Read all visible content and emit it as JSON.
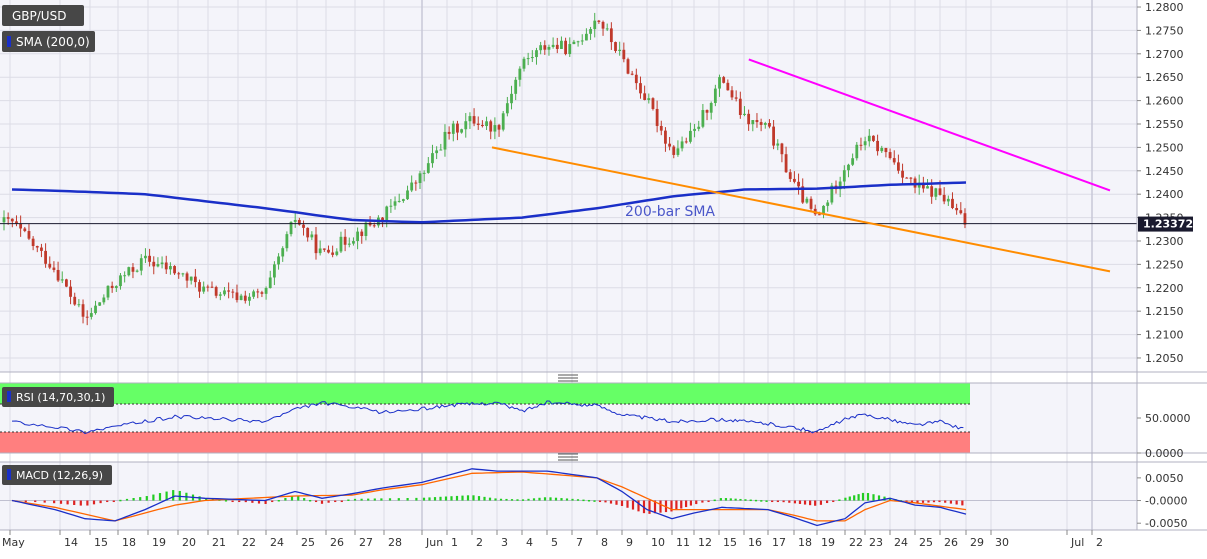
{
  "header": {
    "symbol": "GBP/USD",
    "overlay_indicator": "SMA (200,0)"
  },
  "colors": {
    "background": "#f4f4fa",
    "grid": "#dcdce6",
    "bull_candle": "#4caf50",
    "bear_candle": "#c0392b",
    "sma": "#1a2fc8",
    "support_line": "#ff8c00",
    "resistance_line": "#ff00ff",
    "rsi_overbought_zone": "#66ff66",
    "rsi_oversold_zone": "#ff7f7f",
    "macd_line": "#1a2fc8",
    "signal_line": "#ff6600",
    "hist_positive": "#22cc22",
    "hist_negative": "#dd2222"
  },
  "chart_data": [
    {
      "type": "candlestick",
      "panel": "price",
      "symbol": "GBP/USD",
      "timeframe": "1H",
      "last_price": "1.23372",
      "ylim": [
        1.202,
        1.2815
      ],
      "y_ticks": [
        "1.2050",
        "1.2100",
        "1.2150",
        "1.2200",
        "1.2250",
        "1.2300",
        "1.2350",
        "1.2400",
        "1.2450",
        "1.2500",
        "1.2550",
        "1.2600",
        "1.2650",
        "1.2700",
        "1.2750",
        "1.2800"
      ],
      "x_tick_labels": [
        "May",
        "14",
        "15",
        "18",
        "19",
        "20",
        "21",
        "22",
        "24",
        "25",
        "26",
        "27",
        "28",
        "Jun",
        "1",
        "2",
        "3",
        "4",
        "5",
        "7",
        "8",
        "9",
        "10",
        "11",
        "12",
        "15",
        "16",
        "17",
        "18",
        "19",
        "22",
        "23",
        "24",
        "25",
        "26",
        "29",
        "30",
        "Jul",
        "2"
      ],
      "price_path": [
        {
          "session": 0,
          "close": 1.234
        },
        {
          "session": 1,
          "close": 1.224
        },
        {
          "session": 2,
          "close": 1.213
        },
        {
          "session": 3,
          "close": 1.221
        },
        {
          "session": 4,
          "close": 1.226
        },
        {
          "session": 5,
          "close": 1.2235
        },
        {
          "session": 6,
          "close": 1.2195
        },
        {
          "session": 7,
          "close": 1.218
        },
        {
          "session": 8,
          "close": 1.2185
        },
        {
          "session": 9,
          "close": 1.235
        },
        {
          "session": 10,
          "close": 1.227
        },
        {
          "session": 11,
          "close": 1.231
        },
        {
          "session": 12,
          "close": 1.235
        },
        {
          "session": 13,
          "close": 1.244
        },
        {
          "session": 14,
          "close": 1.253
        },
        {
          "session": 15,
          "close": 1.256
        },
        {
          "session": 16,
          "close": 1.254
        },
        {
          "session": 17,
          "close": 1.268
        },
        {
          "session": 18,
          "close": 1.272
        },
        {
          "session": 19,
          "close": 1.271
        },
        {
          "session": 20,
          "close": 1.278
        },
        {
          "session": 21,
          "close": 1.269
        },
        {
          "session": 22,
          "close": 1.26
        },
        {
          "session": 23,
          "close": 1.249
        },
        {
          "session": 24,
          "close": 1.253
        },
        {
          "session": 25,
          "close": 1.265
        },
        {
          "session": 26,
          "close": 1.256
        },
        {
          "session": 27,
          "close": 1.254
        },
        {
          "session": 28,
          "close": 1.242
        },
        {
          "session": 29,
          "close": 1.2345
        },
        {
          "session": 30,
          "close": 1.246
        },
        {
          "session": 31,
          "close": 1.252
        },
        {
          "session": 32,
          "close": 1.248
        },
        {
          "session": 33,
          "close": 1.2415
        },
        {
          "session": 34,
          "close": 1.24
        },
        {
          "session": 35,
          "close": 1.2337
        }
      ],
      "sma_200": {
        "label": "200-bar SMA",
        "values": [
          {
            "session": 0,
            "value": 1.241
          },
          {
            "session": 4,
            "value": 1.24
          },
          {
            "session": 8,
            "value": 1.237
          },
          {
            "session": 11,
            "value": 1.2345
          },
          {
            "session": 13,
            "value": 1.234
          },
          {
            "session": 17,
            "value": 1.235
          },
          {
            "session": 20,
            "value": 1.237
          },
          {
            "session": 23,
            "value": 1.2395
          },
          {
            "session": 26,
            "value": 1.241
          },
          {
            "session": 29,
            "value": 1.2412
          },
          {
            "session": 32,
            "value": 1.242
          },
          {
            "session": 35,
            "value": 1.2425
          }
        ]
      },
      "trendlines": [
        {
          "name": "support",
          "from": {
            "session": 15.8,
            "value": 1.25
          },
          "to": {
            "session": 40.6,
            "value": 1.2235
          }
        },
        {
          "name": "resistance",
          "from": {
            "session": 26.2,
            "value": 1.2688
          },
          "to": {
            "session": 40.6,
            "value": 1.2408
          }
        }
      ]
    },
    {
      "type": "line",
      "panel": "rsi",
      "indicator": "RSI (14,70,30,1)",
      "ylim": [
        0,
        100
      ],
      "y_ticks": [
        "50.0000",
        "0.0000"
      ],
      "overbought": 70,
      "oversold": 30,
      "values": [
        {
          "session": 0,
          "value": 45
        },
        {
          "session": 2,
          "value": 30
        },
        {
          "session": 3,
          "value": 38
        },
        {
          "session": 5,
          "value": 52
        },
        {
          "session": 8,
          "value": 45
        },
        {
          "session": 9,
          "value": 62
        },
        {
          "session": 10,
          "value": 72
        },
        {
          "session": 12,
          "value": 58
        },
        {
          "session": 14,
          "value": 68
        },
        {
          "session": 16,
          "value": 72
        },
        {
          "session": 17,
          "value": 60
        },
        {
          "session": 18,
          "value": 72
        },
        {
          "session": 20,
          "value": 68
        },
        {
          "session": 21,
          "value": 55
        },
        {
          "session": 23,
          "value": 45
        },
        {
          "session": 25,
          "value": 48
        },
        {
          "session": 27,
          "value": 42
        },
        {
          "session": 29,
          "value": 30
        },
        {
          "session": 30,
          "value": 48
        },
        {
          "session": 31,
          "value": 55
        },
        {
          "session": 33,
          "value": 40
        },
        {
          "session": 34,
          "value": 45
        },
        {
          "session": 35,
          "value": 33
        }
      ]
    },
    {
      "type": "bar+line",
      "panel": "macd",
      "indicator": "MACD (12,26,9)",
      "ylim": [
        -0.0065,
        0.0085
      ],
      "y_ticks": [
        "0.0050",
        "-0.0000",
        "-0.0050"
      ],
      "macd": [
        {
          "session": 0,
          "value": 0.0
        },
        {
          "session": 2,
          "value": -0.004
        },
        {
          "session": 3,
          "value": -0.0045
        },
        {
          "session": 4,
          "value": -0.002
        },
        {
          "session": 5,
          "value": 0.001
        },
        {
          "session": 6,
          "value": 0.0005
        },
        {
          "session": 8,
          "value": 0.0
        },
        {
          "session": 9,
          "value": 0.002
        },
        {
          "session": 10,
          "value": 0.0005
        },
        {
          "session": 11,
          "value": 0.0015
        },
        {
          "session": 13,
          "value": 0.004
        },
        {
          "session": 15,
          "value": 0.007
        },
        {
          "session": 16,
          "value": 0.0065
        },
        {
          "session": 18,
          "value": 0.0065
        },
        {
          "session": 20,
          "value": 0.005
        },
        {
          "session": 21,
          "value": 0.002
        },
        {
          "session": 22,
          "value": -0.002
        },
        {
          "session": 23,
          "value": -0.004
        },
        {
          "session": 25,
          "value": -0.0015
        },
        {
          "session": 27,
          "value": -0.002
        },
        {
          "session": 29,
          "value": -0.0055
        },
        {
          "session": 30,
          "value": -0.004
        },
        {
          "session": 31,
          "value": -0.0005
        },
        {
          "session": 32,
          "value": 0.0005
        },
        {
          "session": 33,
          "value": -0.001
        },
        {
          "session": 34,
          "value": -0.0015
        },
        {
          "session": 35,
          "value": -0.003
        }
      ],
      "signal": [
        {
          "session": 0,
          "value": 0.0
        },
        {
          "session": 2,
          "value": -0.003
        },
        {
          "session": 3,
          "value": -0.0045
        },
        {
          "session": 5,
          "value": -0.001
        },
        {
          "session": 6,
          "value": 0.0
        },
        {
          "session": 9,
          "value": 0.001
        },
        {
          "session": 11,
          "value": 0.0012
        },
        {
          "session": 13,
          "value": 0.0035
        },
        {
          "session": 15,
          "value": 0.006
        },
        {
          "session": 17,
          "value": 0.0063
        },
        {
          "session": 20,
          "value": 0.005
        },
        {
          "session": 21,
          "value": 0.003
        },
        {
          "session": 23,
          "value": -0.002
        },
        {
          "session": 25,
          "value": -0.002
        },
        {
          "session": 27,
          "value": -0.002
        },
        {
          "session": 29,
          "value": -0.0045
        },
        {
          "session": 30,
          "value": -0.0045
        },
        {
          "session": 31,
          "value": -0.002
        },
        {
          "session": 32,
          "value": 0.0
        },
        {
          "session": 33,
          "value": -0.0005
        },
        {
          "session": 35,
          "value": -0.002
        }
      ]
    }
  ]
}
